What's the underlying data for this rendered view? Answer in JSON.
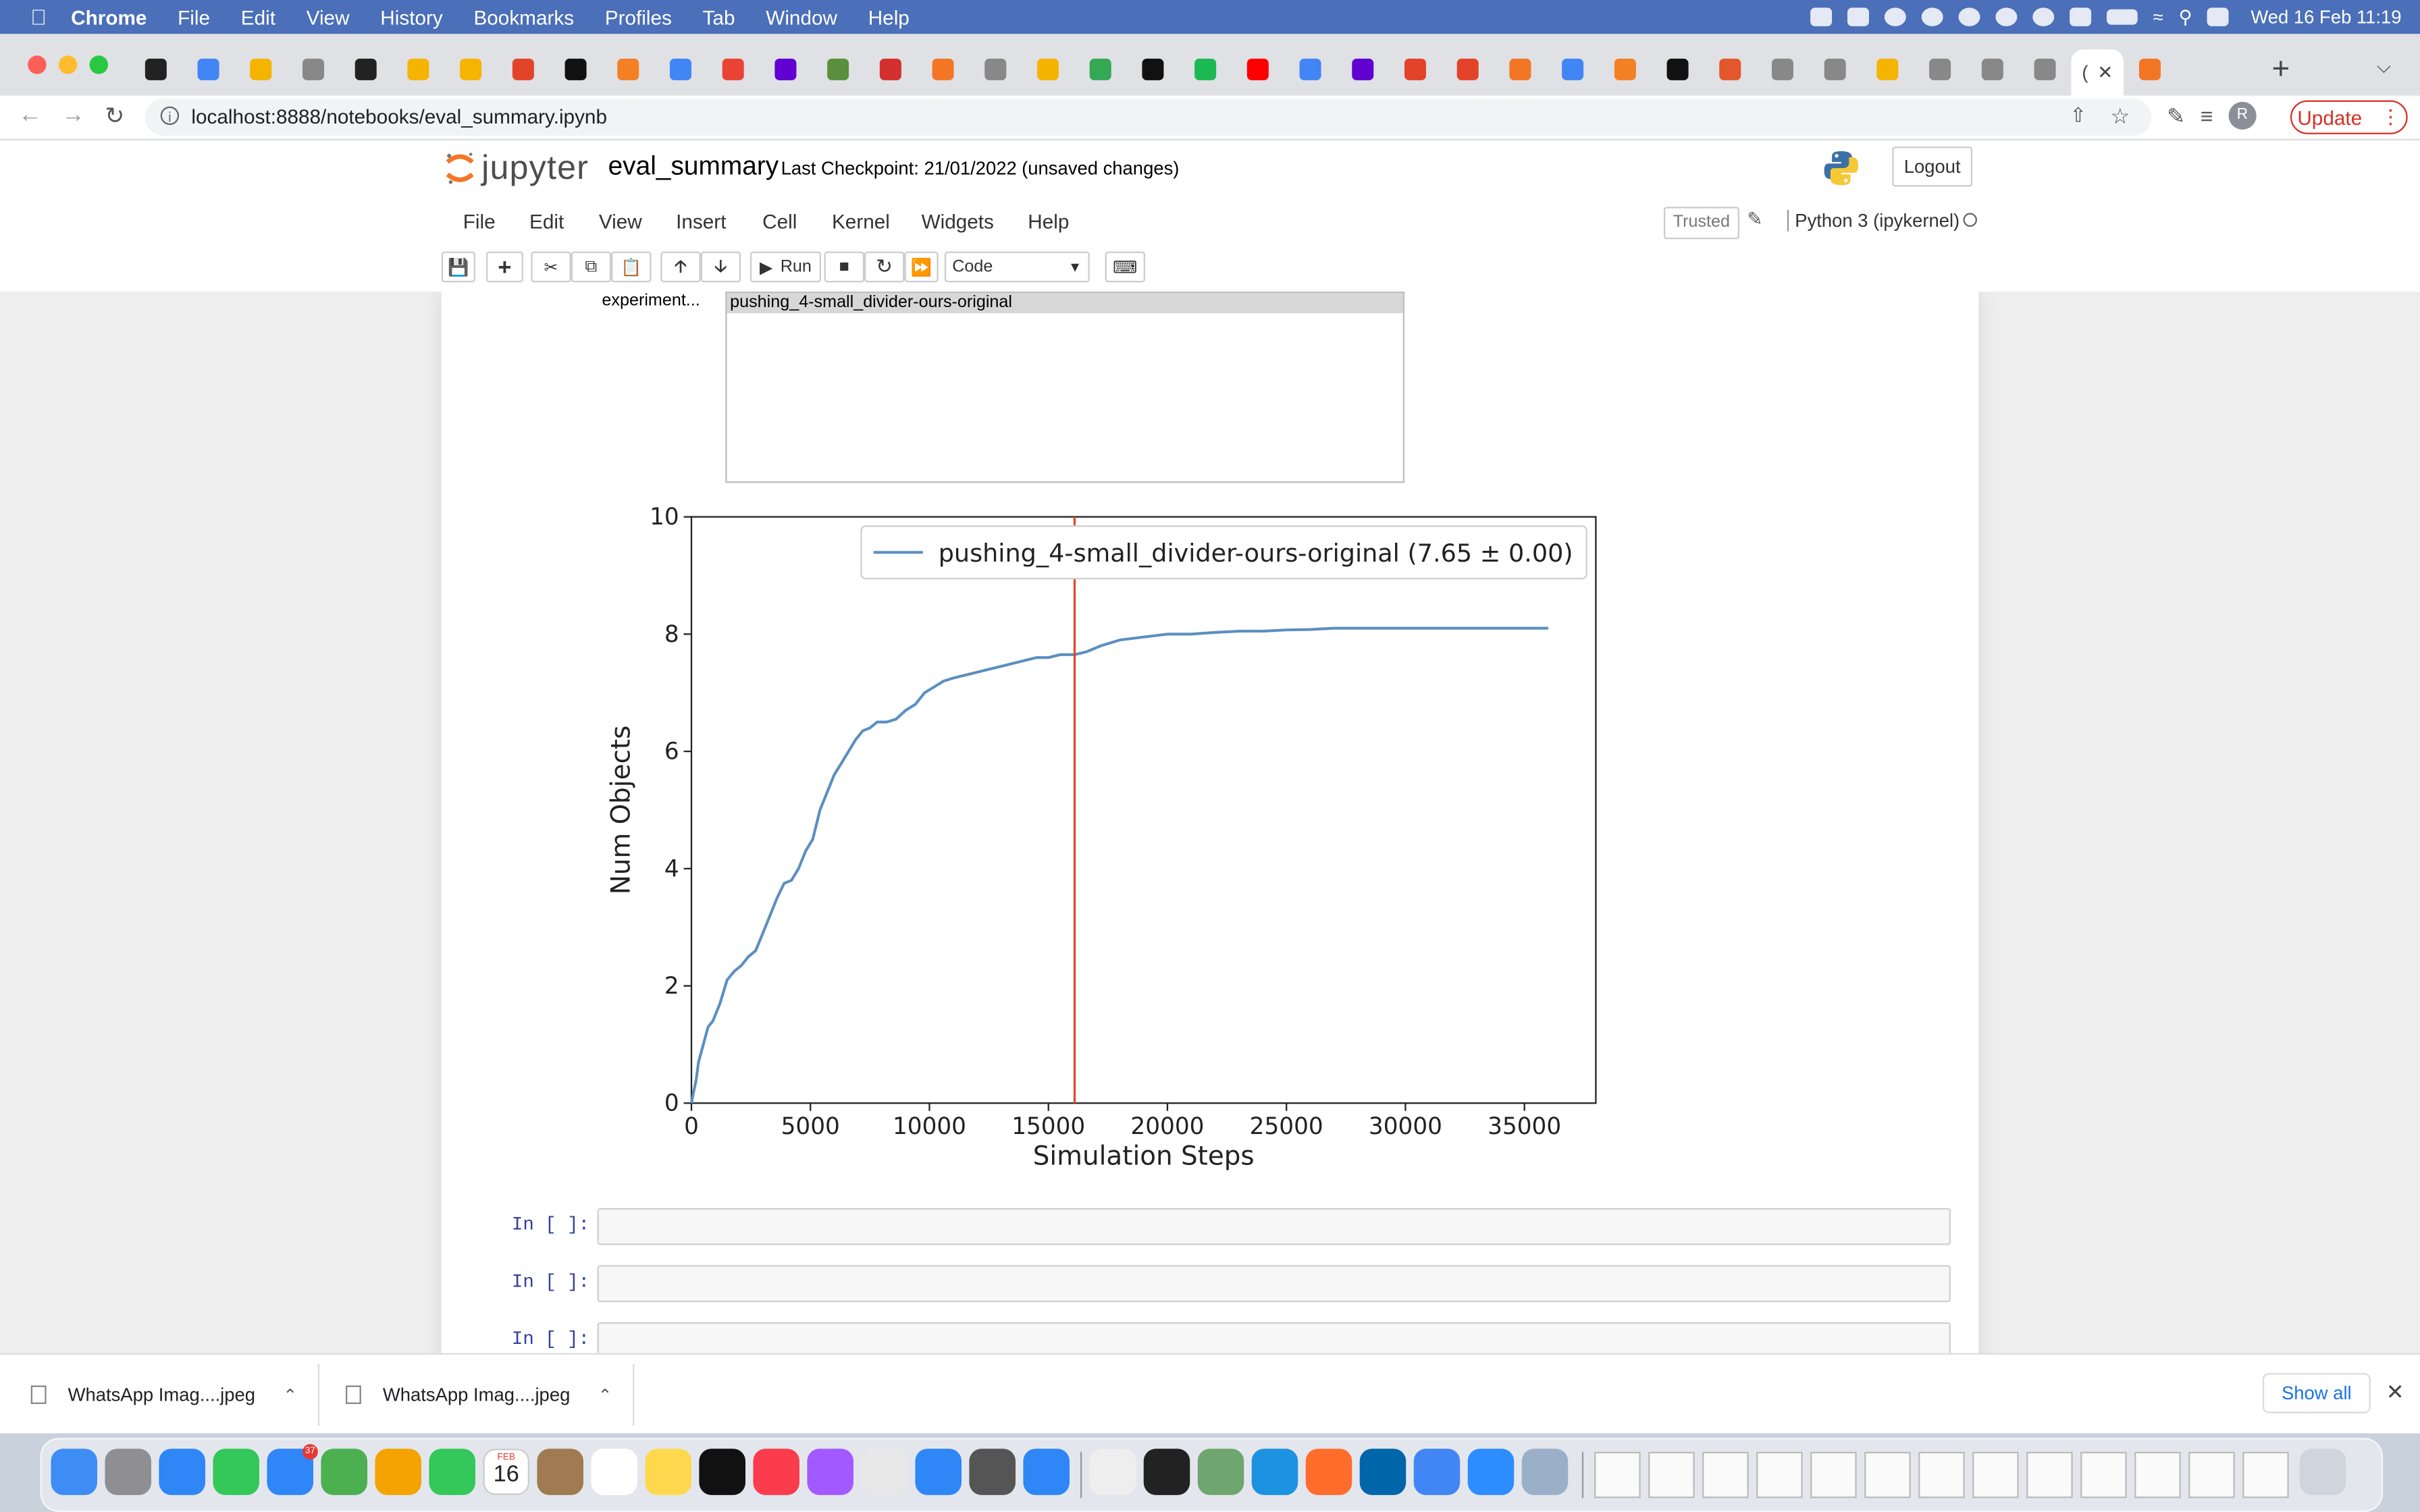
{
  "menubar": {
    "app": "Chrome",
    "items": [
      "File",
      "Edit",
      "View",
      "History",
      "Bookmarks",
      "Profiles",
      "Tab",
      "Window",
      "Help"
    ],
    "datetime": "Wed 16 Feb  11:19"
  },
  "browser": {
    "url": "localhost:8888/notebooks/eval_summary.ipynb",
    "update_label": "Update",
    "active_tab_label": "(",
    "tab_icon_colors": [
      "#222222",
      "#4285f4",
      "#f4b400",
      "#888888",
      "#222222",
      "#f4b400",
      "#f4b400",
      "#e24329",
      "#111111",
      "#f48024",
      "#4285f4",
      "#ea4335",
      "#6001d2",
      "#5a8f3d",
      "#d32f2f",
      "#f37626",
      "#888888",
      "#f4b400",
      "#34a853",
      "#111111",
      "#1db954",
      "#ff0000",
      "#4285f4",
      "#6001d2",
      "#e24329",
      "#e24329",
      "#f37626",
      "#4285f4",
      "#f48024",
      "#111111",
      "#e2572c",
      "#888888",
      "#888888",
      "#f4b400",
      "#888888",
      "#888888",
      "#888888",
      "#f37626"
    ]
  },
  "jupyter": {
    "logo_text": "jupyter",
    "notebook_name": "eval_summary",
    "checkpoint": "Last Checkpoint: 21/01/2022",
    "unsaved": "(unsaved changes)",
    "logout_label": "Logout",
    "menu": [
      "File",
      "Edit",
      "View",
      "Insert",
      "Cell",
      "Kernel",
      "Widgets",
      "Help"
    ],
    "trusted_label": "Trusted",
    "kernel_name": "Python 3 (ipykernel)",
    "run_label": "Run",
    "cell_type": "Code"
  },
  "widget": {
    "label": "experiment...",
    "selected_option": "pushing_4-small_divider-ours-original"
  },
  "chart_data": {
    "type": "line",
    "xlabel": "Simulation Steps",
    "ylabel": "Num Objects",
    "xlim": [
      0,
      38000
    ],
    "ylim": [
      0,
      10
    ],
    "xticks": [
      0,
      5000,
      10000,
      15000,
      20000,
      25000,
      30000,
      35000
    ],
    "yticks": [
      0,
      2,
      4,
      6,
      8,
      10
    ],
    "legend_location": "upper-right",
    "vline_x": 16100,
    "vline_color": "#e0472a",
    "series": [
      {
        "name": "pushing_4-small_divider-ours-original (7.65 ± 0.00)",
        "color": "#5b8fc0",
        "x": [
          0,
          100,
          200,
          300,
          500,
          700,
          900,
          1200,
          1500,
          1800,
          2100,
          2400,
          2700,
          3000,
          3300,
          3600,
          3900,
          4200,
          4500,
          4800,
          5100,
          5400,
          5700,
          6000,
          6300,
          6600,
          6900,
          7200,
          7500,
          7800,
          8200,
          8600,
          9000,
          9400,
          9800,
          10200,
          10600,
          11000,
          11500,
          12000,
          12500,
          13000,
          13500,
          14000,
          14500,
          15000,
          15500,
          16100,
          16600,
          17200,
          18000,
          19000,
          20000,
          21000,
          22000,
          23000,
          24000,
          25000,
          26000,
          27000,
          28000,
          30000,
          32000,
          34000,
          36000
        ],
        "y": [
          0,
          0.2,
          0.4,
          0.7,
          1.0,
          1.3,
          1.4,
          1.7,
          2.1,
          2.25,
          2.35,
          2.5,
          2.6,
          2.9,
          3.2,
          3.5,
          3.75,
          3.8,
          4.0,
          4.3,
          4.5,
          5.0,
          5.3,
          5.6,
          5.8,
          6.0,
          6.2,
          6.35,
          6.4,
          6.5,
          6.5,
          6.55,
          6.7,
          6.8,
          7.0,
          7.1,
          7.2,
          7.25,
          7.3,
          7.35,
          7.4,
          7.45,
          7.5,
          7.55,
          7.6,
          7.6,
          7.65,
          7.65,
          7.7,
          7.8,
          7.9,
          7.95,
          8.0,
          8.0,
          8.03,
          8.05,
          8.05,
          8.07,
          8.08,
          8.1,
          8.1,
          8.1,
          8.1,
          8.1,
          8.1
        ]
      }
    ]
  },
  "cells": [
    {
      "prompt": "In [ ]:"
    },
    {
      "prompt": "In [ ]:"
    },
    {
      "prompt": "In [ ]:"
    }
  ],
  "downloads": {
    "items": [
      {
        "name": "WhatsApp Imag....jpeg"
      },
      {
        "name": "WhatsApp Imag....jpeg"
      }
    ],
    "show_all_label": "Show all"
  },
  "dock": {
    "calendar_month": "FEB",
    "calendar_day": "16",
    "mail_badge": "37",
    "icon_colors": [
      "#3d8df5",
      "#8e8e93",
      "#2f86f6",
      "#34c759",
      "#2f86f6",
      "#4caf50",
      "#f4a300",
      "#34c759",
      "#ffffff",
      "#a07a50",
      "#ffffff",
      "#ffd84d",
      "#111111",
      "#fa3c4c",
      "#a259ff",
      "#e8e8e8",
      "#2f86f6",
      "#555555",
      "#2f86f6",
      "#eeeeee",
      "#222222",
      "#6fa66f",
      "#1d92e0",
      "#ff6d2c",
      "#0065a9",
      "#4285f4",
      "#2d8cff",
      "#9ab0c8"
    ]
  }
}
